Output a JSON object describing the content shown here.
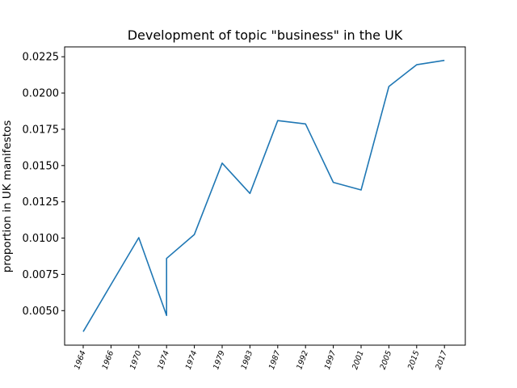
{
  "chart_data": {
    "type": "line",
    "title": "Development of topic \"business\" in the UK",
    "xlabel": "",
    "ylabel": "proportion in UK manifestos",
    "categories": [
      "1964",
      "1966",
      "1970",
      "1974",
      "1974",
      "1979",
      "1983",
      "1987",
      "1992",
      "1997",
      "2001",
      "2005",
      "2015",
      "2017"
    ],
    "series": [
      {
        "color": "#1f77b4",
        "points": [
          {
            "x": "1964",
            "y": 0.00355
          },
          {
            "x": "1966",
            "y": 0.0068
          },
          {
            "x": "1970",
            "y": 0.01003
          },
          {
            "x": "1974",
            "y": 0.00467
          },
          {
            "x": "1974",
            "y": 0.0086
          },
          {
            "x": "1974",
            "y": 0.01025
          },
          {
            "x": "1979",
            "y": 0.01517
          },
          {
            "x": "1983",
            "y": 0.01308
          },
          {
            "x": "1987",
            "y": 0.0181
          },
          {
            "x": "1992",
            "y": 0.01787
          },
          {
            "x": "1997",
            "y": 0.01384
          },
          {
            "x": "2001",
            "y": 0.01332
          },
          {
            "x": "2005",
            "y": 0.02045
          },
          {
            "x": "2015",
            "y": 0.02195
          },
          {
            "x": "2017",
            "y": 0.02225
          }
        ]
      }
    ],
    "yticks": [
      "0.0050",
      "0.0075",
      "0.0100",
      "0.0125",
      "0.0150",
      "0.0175",
      "0.0200",
      "0.0225"
    ],
    "ylim": [
      0.00262,
      0.02318
    ],
    "grid": false,
    "legend": "none"
  }
}
